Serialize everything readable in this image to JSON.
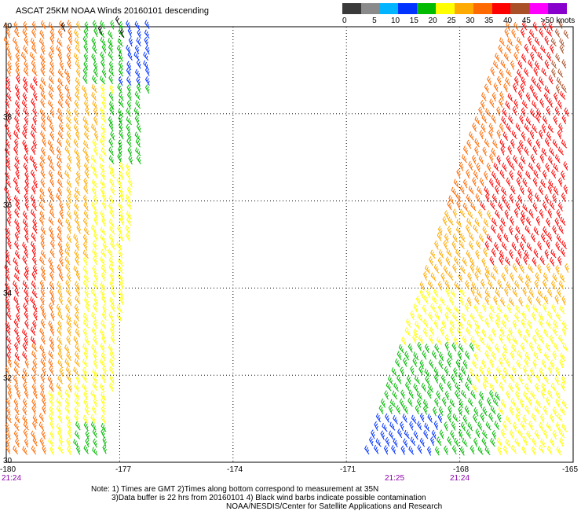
{
  "title": "ASCAT 25KM NOAA Winds 20160101 descending",
  "legend": {
    "colors": [
      "#3a3a3a",
      "#8a8a8a",
      "#00b4ff",
      "#0033ff",
      "#00bb00",
      "#ffff00",
      "#ffaa00",
      "#ff6a00",
      "#ff0000",
      "#aa5028",
      "#ff00ff",
      "#8800cc"
    ],
    "labels": [
      "0",
      "5",
      "10",
      "15",
      "20",
      "25",
      "30",
      "35",
      "40",
      "45",
      ">50 knots"
    ]
  },
  "lon_labels": [
    "-180",
    "-177",
    "-174",
    "-171",
    "-168",
    "-165"
  ],
  "lat_labels": [
    "40",
    "38",
    "36",
    "34",
    "32",
    "30"
  ],
  "times": [
    "21:24",
    "21:25",
    "21:24"
  ],
  "notes": [
    "Note: 1) Times are GMT 2)Times along bottom correspond to measurement at 35N",
    "3)Data buffer is 22 hrs from 20160101 4) Black wind barbs indicate possible contamination",
    "NOAA/NESDIS/Center for Satellite Applications and Research"
  ],
  "map": {
    "lon_range": [
      -180,
      -165
    ],
    "lat_range": [
      30,
      40
    ],
    "swaths": [
      {
        "name": "west-swath",
        "lon_edges_at_30": [
          -180,
          -177.3
        ],
        "lon_edges_at_40": [
          -180,
          -176.0
        ]
      },
      {
        "name": "east-swath",
        "lon_edges_at_30": [
          -170.5,
          -165
        ],
        "lon_edges_at_40": [
          -166.7,
          -165
        ]
      }
    ]
  }
}
